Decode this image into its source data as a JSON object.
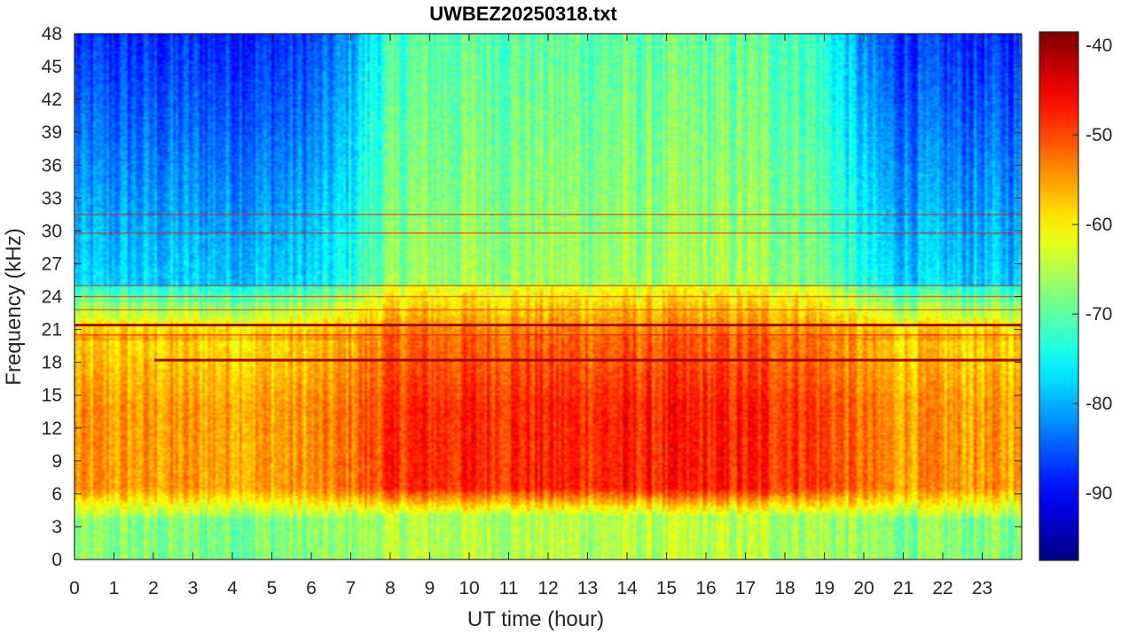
{
  "chart_data": {
    "type": "heatmap",
    "title": "UWBEZ20250318.txt",
    "xlabel": "UT time (hour)",
    "ylabel": "Frequency (kHz)",
    "xlim": [
      0,
      24
    ],
    "ylim": [
      0,
      48
    ],
    "x_ticks": [
      "0",
      "1",
      "2",
      "3",
      "4",
      "5",
      "6",
      "7",
      "8",
      "9",
      "10",
      "11",
      "12",
      "13",
      "14",
      "15",
      "16",
      "17",
      "18",
      "19",
      "20",
      "21",
      "22",
      "23"
    ],
    "y_ticks": [
      "0",
      "3",
      "6",
      "9",
      "12",
      "15",
      "18",
      "21",
      "24",
      "27",
      "30",
      "33",
      "36",
      "39",
      "42",
      "45",
      "48"
    ],
    "colormap": "jet",
    "colorbar": {
      "range": [
        -97.5,
        -38.5
      ],
      "ticks": [
        "-40",
        "-50",
        "-60",
        "-70",
        "-80",
        "-90"
      ]
    },
    "approx_levels_dB": {
      "daytime_band_3_to_20_kHz": -48,
      "nighttime_band_3_to_20_kHz": -55,
      "above_25_kHz_day": -66,
      "above_25_kHz_night": -78,
      "top_48_kHz_night": -88
    },
    "narrowband_lines_kHz": [
      21.4,
      18.2,
      24.0,
      25.0,
      20.5,
      29.8,
      31.5,
      22.8
    ],
    "colors": {
      "frame": "#262626",
      "background": "#ffffff"
    }
  }
}
